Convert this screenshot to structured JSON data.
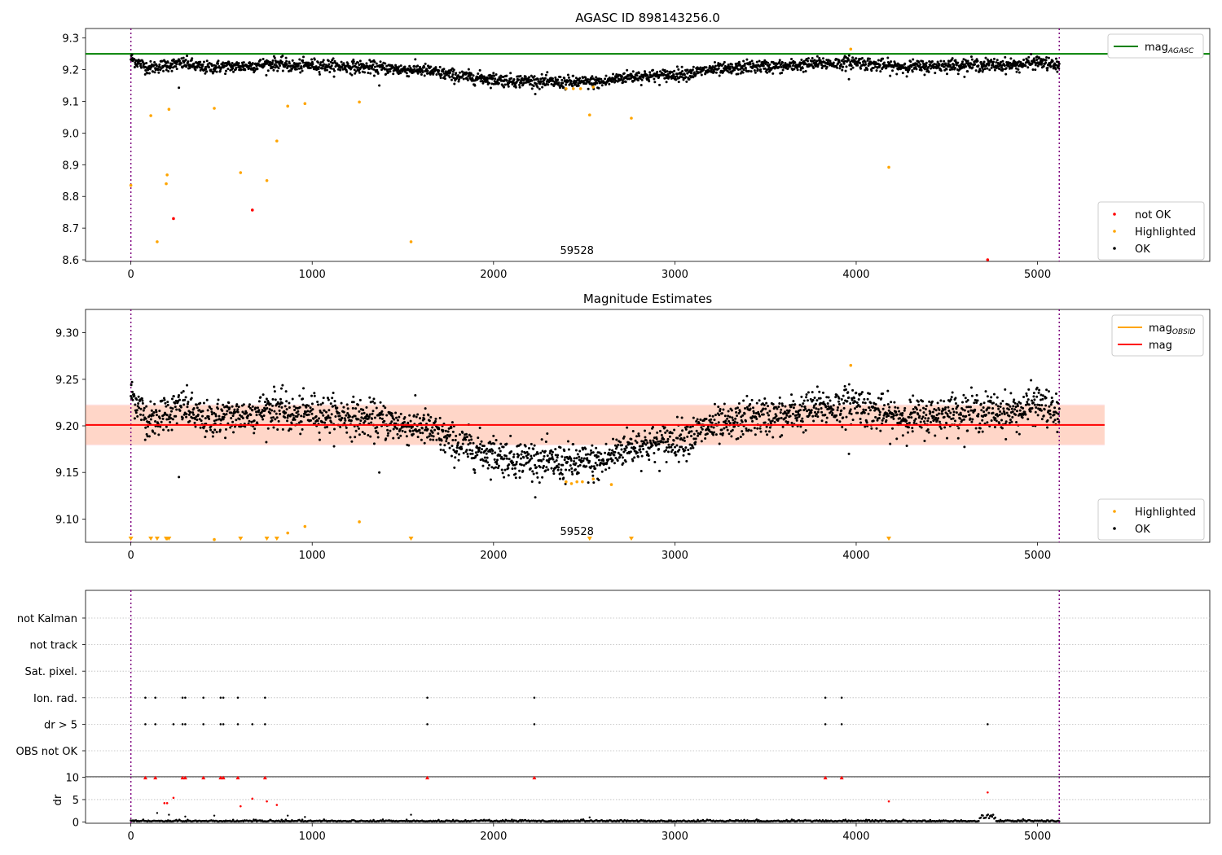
{
  "chart_data": [
    {
      "id": "top",
      "type": "scatter",
      "title": "AGASC ID 898143256.0",
      "xlim": [
        -250,
        5950
      ],
      "ylim": [
        8.595,
        9.33
      ],
      "xticks": [
        0,
        1000,
        2000,
        3000,
        4000,
        5000
      ],
      "yticks": [
        8.6,
        8.7,
        8.8,
        8.9,
        9.0,
        9.1,
        9.2,
        9.3
      ],
      "ytick_labels": [
        "8.6",
        "8.7",
        "8.8",
        "8.9",
        "9.0",
        "9.1",
        "9.2",
        "9.3"
      ],
      "vlines": [
        0,
        5120
      ],
      "hline": {
        "name": "mag",
        "subscript": "AGASC",
        "value": 9.25,
        "color": "#008000"
      },
      "annotation": {
        "text": "59528",
        "x": 2550
      },
      "legend_upper": [
        {
          "label": "mag",
          "sub": "AGASC",
          "color": "#008000",
          "kind": "line"
        }
      ],
      "legend_lower": [
        {
          "label": "not OK",
          "color": "#ff0000",
          "kind": "dot"
        },
        {
          "label": "Highlighted",
          "color": "#ffa500",
          "kind": "dot"
        },
        {
          "label": "OK",
          "color": "#000000",
          "kind": "dot"
        }
      ],
      "ok_trend": {
        "x": [
          0,
          50,
          100,
          200,
          300,
          400,
          500,
          600,
          800,
          900,
          1000,
          1200,
          1400,
          1500,
          1600,
          1700,
          1800,
          1900,
          2000,
          2100,
          2200,
          2300,
          2400,
          2500,
          2600,
          2700,
          2800,
          2900,
          3000,
          3100,
          3200,
          3300,
          3400,
          3500,
          3600,
          3700,
          3800,
          3900,
          4000,
          4100,
          4200,
          4300,
          4400,
          4500,
          4600,
          4700,
          4800,
          4900,
          5000,
          5120
        ],
        "y": [
          9.235,
          9.22,
          9.205,
          9.215,
          9.22,
          9.205,
          9.21,
          9.21,
          9.22,
          9.21,
          9.215,
          9.21,
          9.205,
          9.2,
          9.2,
          9.19,
          9.18,
          9.175,
          9.17,
          9.165,
          9.165,
          9.16,
          9.16,
          9.16,
          9.16,
          9.175,
          9.18,
          9.18,
          9.185,
          9.19,
          9.2,
          9.2,
          9.21,
          9.21,
          9.21,
          9.215,
          9.22,
          9.22,
          9.225,
          9.215,
          9.21,
          9.21,
          9.21,
          9.215,
          9.215,
          9.215,
          9.215,
          9.215,
          9.225,
          9.21
        ],
        "noise": 0.01,
        "count": 2400
      },
      "ok_outliers": {
        "x": [
          265,
          1370,
          3960,
          4700
        ],
        "y": [
          9.143,
          9.15,
          9.17,
          9.2
        ]
      },
      "highlighted": {
        "x": [
          0,
          110,
          145,
          195,
          200,
          210,
          460,
          605,
          750,
          805,
          865,
          960,
          1260,
          1545,
          2400,
          2440,
          2480,
          2530,
          2550,
          2760,
          3970,
          4180
        ],
        "y": [
          8.835,
          9.055,
          8.657,
          8.84,
          8.868,
          9.075,
          9.078,
          8.875,
          8.85,
          8.975,
          9.085,
          9.093,
          9.098,
          8.657,
          9.14,
          9.14,
          9.14,
          9.057,
          9.145,
          9.047,
          9.265,
          8.892
        ]
      },
      "not_ok": {
        "x": [
          235,
          670,
          4725
        ],
        "y": [
          8.73,
          8.757,
          8.6
        ]
      }
    },
    {
      "id": "middle",
      "type": "scatter",
      "title": "Magnitude Estimates",
      "xlim": [
        -250,
        5950
      ],
      "ylim": [
        9.075,
        9.325
      ],
      "xticks": [
        0,
        1000,
        2000,
        3000,
        4000,
        5000
      ],
      "yticks": [
        9.1,
        9.15,
        9.2,
        9.25,
        9.3
      ],
      "ytick_labels": [
        "9.10",
        "9.15",
        "9.20",
        "9.25",
        "9.30"
      ],
      "vlines": [
        0,
        5120
      ],
      "mag": 9.201,
      "band_outer": [
        9.179,
        9.223
      ],
      "band_inner": [
        9.18,
        9.222
      ],
      "band_xlim": [
        -250,
        5370
      ],
      "annotation": {
        "text": "59528",
        "x": 2550
      },
      "legend_upper": [
        {
          "label": "mag",
          "sub": "OBSID",
          "color": "#ffa500",
          "kind": "line"
        },
        {
          "label": "mag",
          "sub": "",
          "color": "#ff0000",
          "kind": "line"
        }
      ],
      "legend_lower": [
        {
          "label": "Highlighted",
          "color": "#ffa500",
          "kind": "dot"
        },
        {
          "label": "OK",
          "color": "#000000",
          "kind": "dot"
        }
      ],
      "ok_outliers": {
        "x": [
          265,
          1370,
          3960
        ],
        "y": [
          9.145,
          9.15,
          9.17
        ]
      },
      "highlighted": {
        "x": [
          460,
          865,
          960,
          1260,
          2400,
          2430,
          2460,
          2490,
          2550,
          2650,
          3970
        ],
        "y": [
          9.078,
          9.085,
          9.092,
          9.097,
          9.14,
          9.138,
          9.14,
          9.14,
          9.143,
          9.137,
          9.265
        ]
      },
      "below_markers": {
        "x": [
          0,
          110,
          145,
          195,
          200,
          210,
          605,
          750,
          805,
          1545,
          2530,
          2760,
          4180
        ]
      }
    },
    {
      "id": "flags",
      "type": "scatter",
      "xlim": [
        -250,
        5950
      ],
      "categories": [
        "not Kalman",
        "not track",
        "Sat. pixel.",
        "Ion. rad.",
        "dr > 5",
        "OBS not OK"
      ],
      "vlines": [
        0,
        5120
      ],
      "points": {
        "Ion. rad.": [
          80,
          135,
          285,
          300,
          400,
          495,
          510,
          590,
          740,
          1635,
          2225,
          3830,
          3920
        ],
        "dr > 5": [
          80,
          135,
          235,
          285,
          300,
          400,
          495,
          510,
          590,
          670,
          740,
          1635,
          2225,
          3830,
          3920,
          4725
        ]
      }
    },
    {
      "id": "dr",
      "type": "scatter",
      "ylabel": "dr",
      "xlim": [
        -250,
        5950
      ],
      "ylim": [
        -0.3,
        10.1
      ],
      "xticks": [
        0,
        1000,
        2000,
        3000,
        4000,
        5000
      ],
      "yticks": [
        0,
        5,
        10
      ],
      "ytick_labels": [
        "0",
        "5",
        "10"
      ],
      "vlines": [
        0,
        5120
      ],
      "clipped_x": [
        80,
        135,
        285,
        300,
        400,
        495,
        510,
        590,
        740,
        1635,
        2225,
        3830,
        3920
      ],
      "red_points": {
        "x": [
          185,
          200,
          235,
          605,
          670,
          750,
          805,
          4180,
          4725
        ],
        "y": [
          4.2,
          4.2,
          5.4,
          3.5,
          5.2,
          4.6,
          3.8,
          4.6,
          6.6
        ]
      },
      "black_outliers": {
        "x": [
          145,
          210,
          300,
          460,
          865,
          960,
          1545,
          2530
        ],
        "y": [
          2.0,
          1.6,
          1.2,
          1.4,
          1.4,
          1.1,
          1.6,
          1.0
        ]
      }
    }
  ]
}
